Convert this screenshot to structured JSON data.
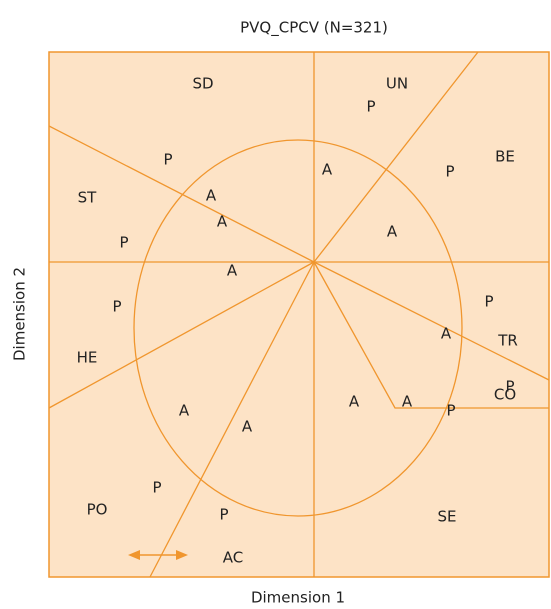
{
  "title": "PVQ_CPCV (N=321)",
  "x_label": "Dimension 1",
  "y_label": "Dimension 2",
  "regions": [
    "SD",
    "UN",
    "BE",
    "ST",
    "TR",
    "HE",
    "CO",
    "PO",
    "SE",
    "AC"
  ],
  "points": [
    "P",
    "P",
    "A",
    "P",
    "A",
    "A",
    "A",
    "P",
    "A",
    "P",
    "P",
    "A",
    "P",
    "A",
    "A",
    "A",
    "P",
    "A",
    "P",
    "P"
  ]
}
